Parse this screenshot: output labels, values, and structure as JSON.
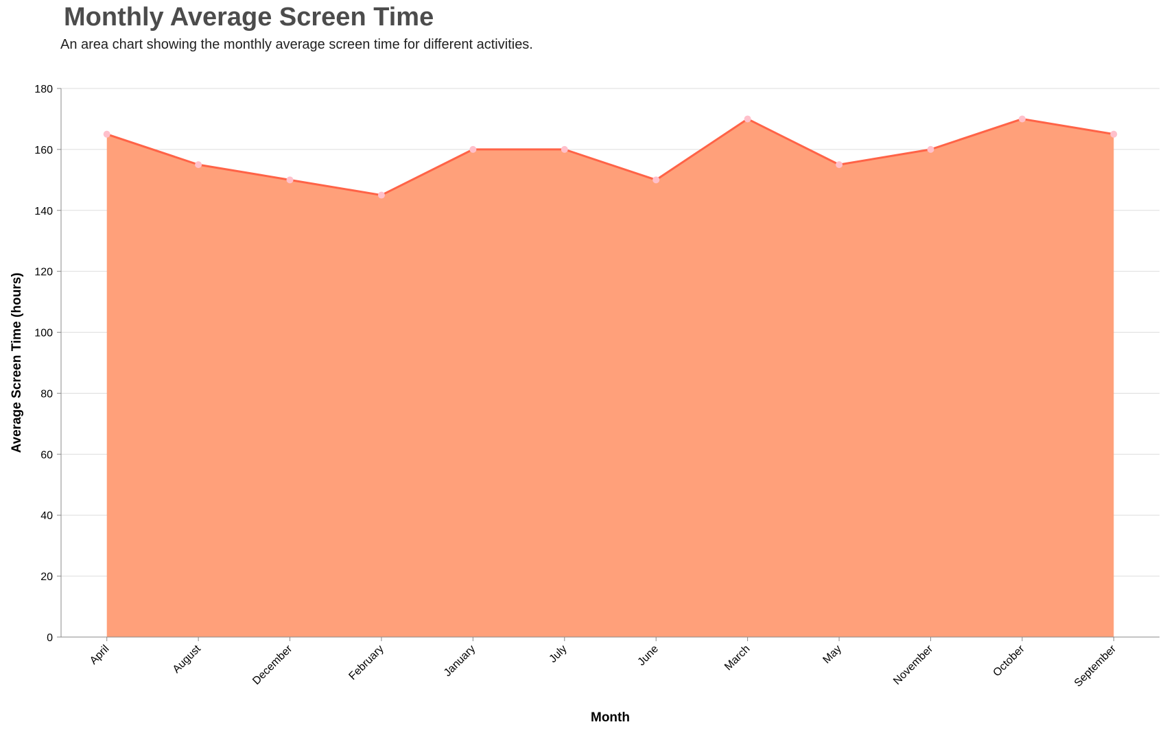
{
  "title": "Monthly Average Screen Time",
  "subtitle": "An area chart showing the monthly average screen time for different activities.",
  "colors": {
    "area_fill": "#ffa07a",
    "line_stroke": "#ff6347",
    "point_fill": "#ffc0cb",
    "grid": "#dddddd",
    "axis": "#888888"
  },
  "chart_data": {
    "type": "area",
    "title": "Monthly Average Screen Time",
    "subtitle": "An area chart showing the monthly average screen time for different activities.",
    "xlabel": "Month",
    "ylabel": "Average Screen Time (hours)",
    "categories": [
      "April",
      "August",
      "December",
      "February",
      "January",
      "July",
      "June",
      "March",
      "May",
      "November",
      "October",
      "September"
    ],
    "values": [
      165,
      155,
      150,
      145,
      160,
      160,
      150,
      170,
      155,
      160,
      170,
      165
    ],
    "ylim": [
      0,
      180
    ],
    "yticks": [
      0,
      20,
      40,
      60,
      80,
      100,
      120,
      140,
      160,
      180
    ],
    "grid": true,
    "legend": "none"
  }
}
